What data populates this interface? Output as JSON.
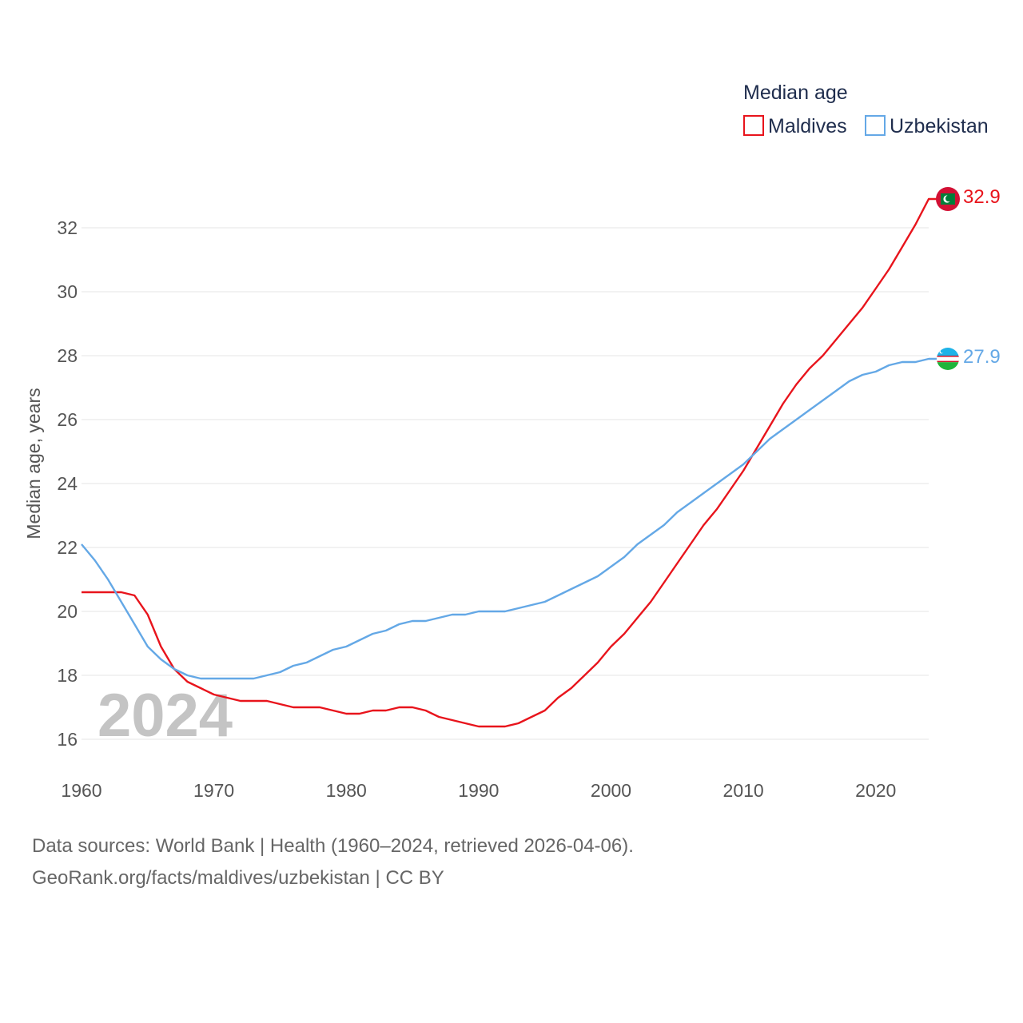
{
  "chart_data": {
    "type": "line",
    "legend_title": "Median age",
    "ylabel": "Median age, years",
    "xlabel": "",
    "year_label": "2024",
    "xlim": [
      1960,
      2024
    ],
    "ylim": [
      15,
      33.5
    ],
    "x_ticks": [
      1960,
      1970,
      1980,
      1990,
      2000,
      2010,
      2020
    ],
    "y_ticks": [
      16,
      18,
      20,
      22,
      24,
      26,
      28,
      30,
      32
    ],
    "legend_position": "top-right",
    "x": [
      1960,
      1961,
      1962,
      1963,
      1964,
      1965,
      1966,
      1967,
      1968,
      1969,
      1970,
      1971,
      1972,
      1973,
      1974,
      1975,
      1976,
      1977,
      1978,
      1979,
      1980,
      1981,
      1982,
      1983,
      1984,
      1985,
      1986,
      1987,
      1988,
      1989,
      1990,
      1991,
      1992,
      1993,
      1994,
      1995,
      1996,
      1997,
      1998,
      1999,
      2000,
      2001,
      2002,
      2003,
      2004,
      2005,
      2006,
      2007,
      2008,
      2009,
      2010,
      2011,
      2012,
      2013,
      2014,
      2015,
      2016,
      2017,
      2018,
      2019,
      2020,
      2021,
      2022,
      2023,
      2024
    ],
    "series": [
      {
        "name": "Maldives",
        "color": "#e8141c",
        "end_label": "32.9",
        "values": [
          20.6,
          20.6,
          20.6,
          20.6,
          20.5,
          19.9,
          18.9,
          18.2,
          17.8,
          17.6,
          17.4,
          17.3,
          17.2,
          17.2,
          17.2,
          17.1,
          17.0,
          17.0,
          17.0,
          16.9,
          16.8,
          16.8,
          16.9,
          16.9,
          17.0,
          17.0,
          16.9,
          16.7,
          16.6,
          16.5,
          16.4,
          16.4,
          16.4,
          16.5,
          16.7,
          16.9,
          17.3,
          17.6,
          18.0,
          18.4,
          18.9,
          19.3,
          19.8,
          20.3,
          20.9,
          21.5,
          22.1,
          22.7,
          23.2,
          23.8,
          24.4,
          25.1,
          25.8,
          26.5,
          27.1,
          27.6,
          28.0,
          28.5,
          29.0,
          29.5,
          30.1,
          30.7,
          31.4,
          32.1,
          32.9
        ]
      },
      {
        "name": "Uzbekistan",
        "color": "#64a8e6",
        "end_label": "27.9",
        "values": [
          22.1,
          21.6,
          21.0,
          20.3,
          19.6,
          18.9,
          18.5,
          18.2,
          18.0,
          17.9,
          17.9,
          17.9,
          17.9,
          17.9,
          18.0,
          18.1,
          18.3,
          18.4,
          18.6,
          18.8,
          18.9,
          19.1,
          19.3,
          19.4,
          19.6,
          19.7,
          19.7,
          19.8,
          19.9,
          19.9,
          20.0,
          20.0,
          20.0,
          20.1,
          20.2,
          20.3,
          20.5,
          20.7,
          20.9,
          21.1,
          21.4,
          21.7,
          22.1,
          22.4,
          22.7,
          23.1,
          23.4,
          23.7,
          24.0,
          24.3,
          24.6,
          25.0,
          25.4,
          25.7,
          26.0,
          26.3,
          26.6,
          26.9,
          27.2,
          27.4,
          27.5,
          27.7,
          27.8,
          27.8,
          27.9
        ]
      }
    ]
  },
  "footer": {
    "line1": "Data sources: World Bank | Health (1960–2024, retrieved 2026-04-06).",
    "line2": "GeoRank.org/facts/maldives/uzbekistan | CC BY"
  }
}
